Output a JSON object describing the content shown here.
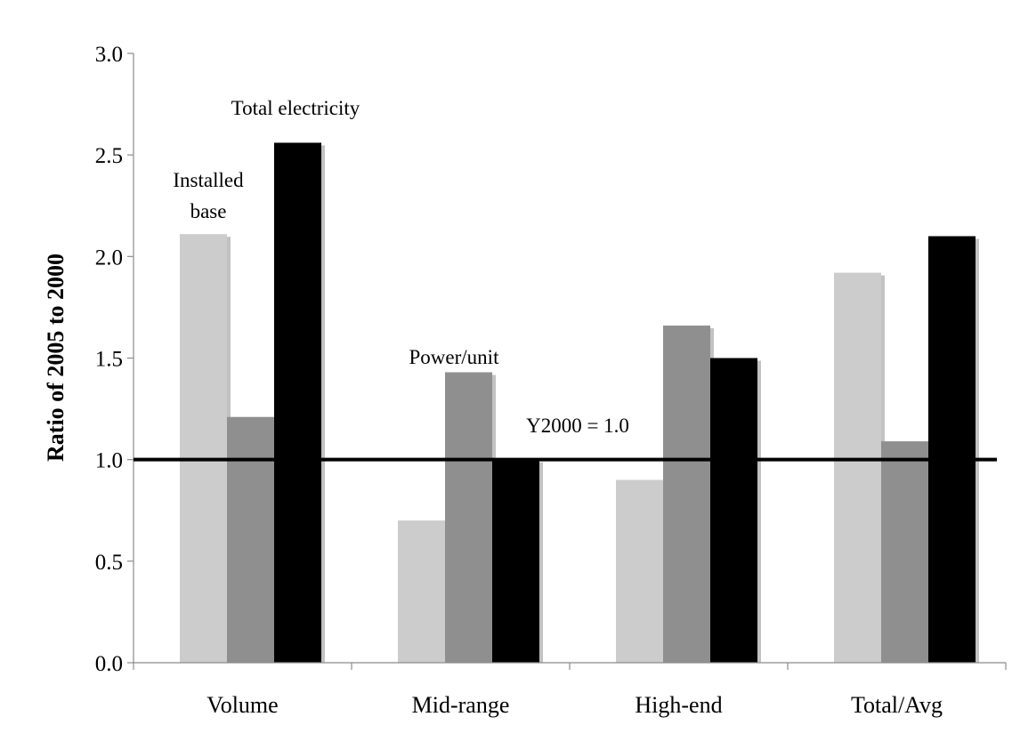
{
  "chart_data": {
    "type": "bar",
    "categories": [
      "Volume",
      "Mid-range",
      "High-end",
      "Total/Avg"
    ],
    "series": [
      {
        "values": [
          2.11,
          0.7,
          0.9,
          1.92
        ]
      },
      {
        "values": [
          1.21,
          1.43,
          1.66,
          1.09
        ]
      },
      {
        "values": [
          2.56,
          1.0,
          1.5,
          2.1
        ]
      }
    ],
    "series_colors": [
      "#cccccc",
      "#8f8f8f",
      "#000000"
    ],
    "title": "",
    "xlabel": "",
    "ylabel": "Ratio of 2005 to 2000",
    "ylim": [
      0,
      3.0
    ],
    "yticks": [
      "0.0",
      "0.5",
      "1.0",
      "1.5",
      "2.0",
      "2.5",
      "3.0"
    ],
    "reference_line": {
      "value": 1.0,
      "label": "Y2000 = 1.0"
    },
    "annotations": {
      "installed_base_line1": "Installed",
      "installed_base_line2": "base",
      "power_unit": "Power/unit",
      "total_electricity": "Total electricity"
    },
    "grid": false,
    "legend": "none"
  }
}
